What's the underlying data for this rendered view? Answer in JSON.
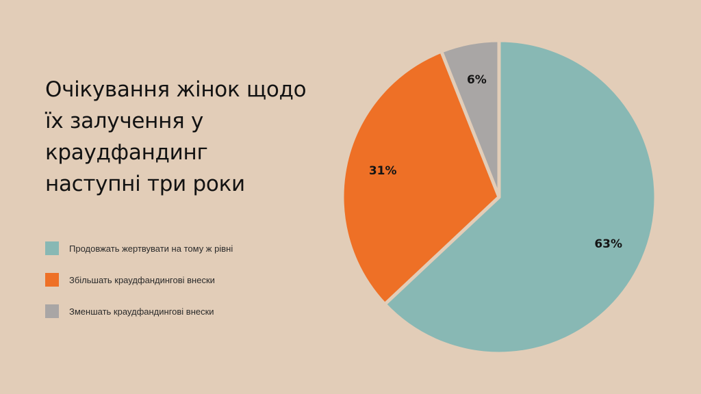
{
  "title": {
    "lines": [
      "Очікування жінок щодо",
      "їх залучення у",
      "краудфандинг",
      "наступні три роки"
    ]
  },
  "chart_data": {
    "type": "pie",
    "title": "Очікування жінок щодо їх залучення у краудфандинг наступні три роки",
    "categories": [
      "Продовжать жертвувати на тому ж рівні",
      "Збільшать краудфандингові внески",
      "Зменшать краудфандингові внески"
    ],
    "values": [
      63,
      31,
      6
    ],
    "value_labels": [
      "63%",
      "31%",
      "6%"
    ],
    "colors": [
      "#88b8b4",
      "#ee7026",
      "#a9a6a5"
    ],
    "legend_position": "left"
  }
}
